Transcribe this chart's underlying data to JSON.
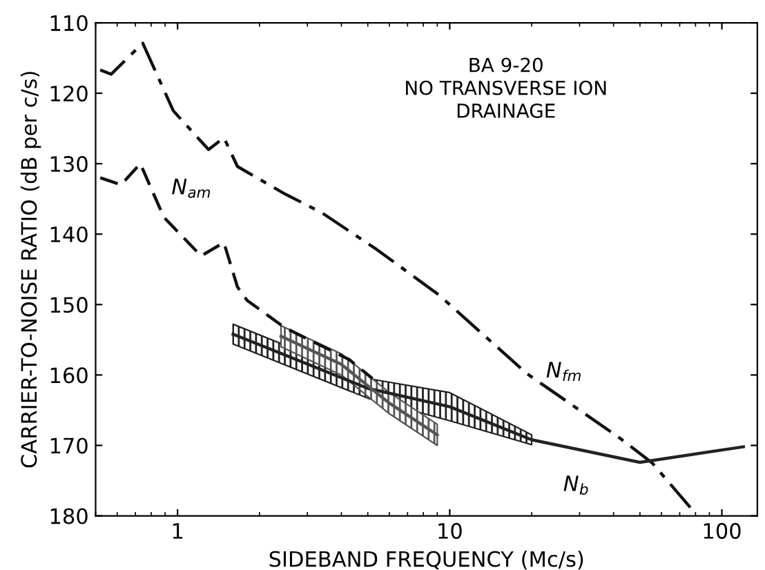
{
  "chart_data": {
    "type": "line",
    "xlabel": "SIDEBAND FREQUENCY (Mc/s)",
    "ylabel": "CARRIER-TO-NOISE RATIO (dB per c/s)",
    "log": "x",
    "xlim": [
      0.5,
      135
    ],
    "xticks": [
      1,
      10,
      100
    ],
    "ylim": [
      180,
      110
    ],
    "yticks": [
      110,
      120,
      130,
      140,
      150,
      160,
      170,
      180
    ],
    "grid": false,
    "legend": false,
    "annotations": [
      "BA 9-20\nNO TRANSVERSE ION\nDRAINAGE"
    ],
    "series": [
      {
        "name": "N$_{fm}$",
        "color": "#111111",
        "line_style": "dashdot",
        "x": [
          0.52,
          0.57,
          0.745,
          0.965,
          1.3,
          1.48,
          1.66,
          2.48,
          3.37,
          5.4,
          9.1,
          19.2,
          42.3,
          55.5,
          80.5
        ],
        "values": [
          116.7,
          117.3,
          112.9,
          122.5,
          128,
          126.3,
          130.4,
          134.3,
          136.9,
          142.2,
          148.6,
          159.8,
          169,
          172.5,
          179.8
        ]
      },
      {
        "name": "N$_{am}$",
        "color": "#111111",
        "line_style": "dashed",
        "x": [
          0.52,
          0.62,
          0.73,
          0.89,
          1.22,
          1.48,
          1.66,
          1.8,
          2.48,
          4.27,
          5.2
        ],
        "values": [
          132,
          133,
          130,
          137.6,
          143.1,
          141.2,
          147.5,
          149.4,
          153.3,
          157.8,
          160.5
        ]
      },
      {
        "name": "N$_{b}$",
        "color": "#222222",
        "line_style": "solid",
        "x": [
          1.6,
          5,
          10,
          20,
          50,
          120
        ],
        "values": [
          154.2,
          161.9,
          164.5,
          169.2,
          172.4,
          170.2
        ],
        "lower": [
          152.8,
          160.5,
          162.5,
          168.5,
          null,
          null
        ],
        "upper": [
          155.6,
          163.3,
          166.5,
          169.9,
          null,
          null
        ]
      },
      {
        "color": "#555555",
        "line_style": "solid",
        "x": [
          2.4,
          4,
          6,
          9
        ],
        "values": [
          154.5,
          158.5,
          164,
          168.5
        ],
        "lower": [
          153,
          157,
          162.5,
          167
        ],
        "upper": [
          156,
          160,
          165.5,
          170
        ]
      }
    ]
  }
}
